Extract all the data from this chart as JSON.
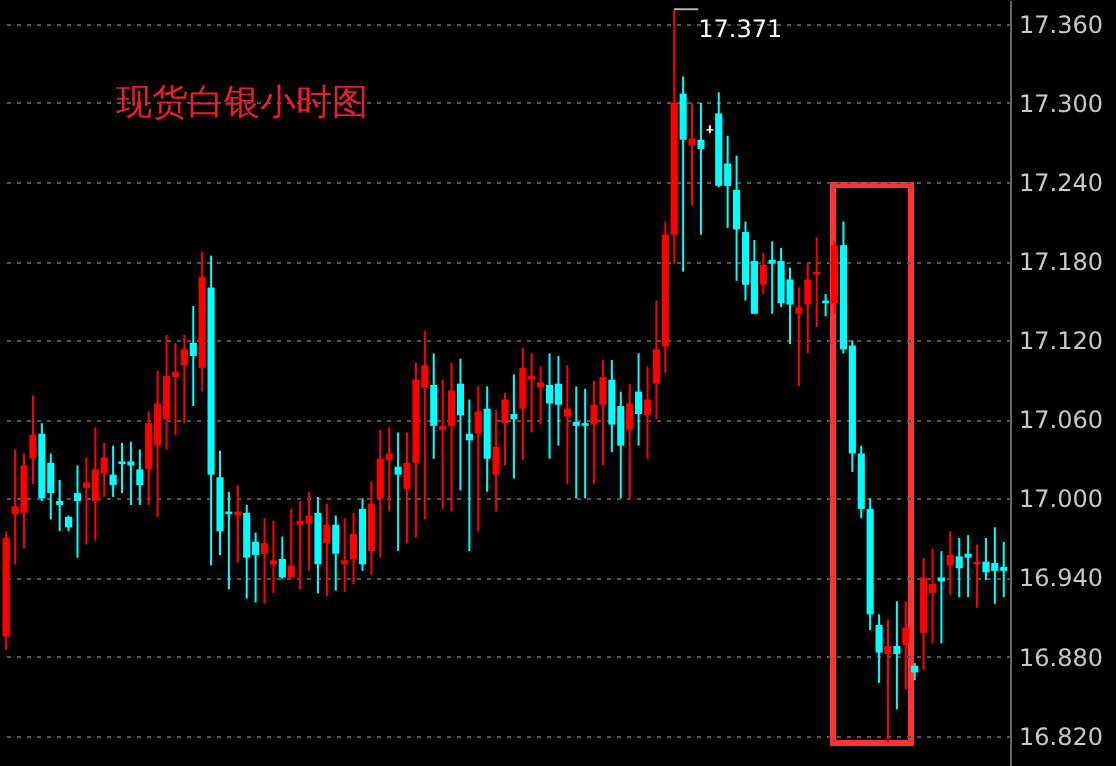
{
  "chart_data": {
    "type": "candlestick",
    "title": "现货白银小时图",
    "categories": [
      null,
      null,
      null,
      null,
      null,
      null,
      null,
      null,
      null,
      null,
      null,
      null,
      null,
      null,
      null,
      null,
      null,
      null,
      null,
      null,
      null,
      null,
      null,
      null,
      null,
      null,
      null,
      null,
      null,
      null,
      null,
      null,
      null,
      null,
      null,
      null,
      null,
      null,
      null,
      null,
      null,
      null,
      null,
      null,
      null,
      null,
      null,
      null,
      null,
      null,
      null,
      null,
      null,
      null,
      null,
      null,
      null,
      null,
      null,
      null,
      null,
      null,
      null,
      null,
      null,
      null,
      null,
      null,
      null,
      null,
      null,
      null,
      null,
      null,
      null,
      null,
      null,
      null,
      null,
      null,
      null,
      null,
      null,
      null,
      null,
      null,
      null,
      null,
      null,
      null,
      null,
      null,
      null,
      null,
      null,
      null,
      null,
      null,
      null,
      null,
      null,
      null,
      null,
      null,
      null,
      null,
      null,
      null,
      null,
      null,
      null,
      null,
      null
    ],
    "ohlc": [
      [
        16.895,
        16.975,
        16.885,
        16.97
      ],
      [
        16.988,
        17.037,
        16.95,
        16.994
      ],
      [
        16.989,
        17.034,
        16.962,
        17.025
      ],
      [
        17.03,
        17.078,
        17.011,
        17.048
      ],
      [
        17.049,
        17.057,
        16.998,
        17.0
      ],
      [
        17.027,
        17.034,
        16.984,
        17.004
      ],
      [
        16.998,
        17.014,
        16.975,
        16.995
      ],
      [
        16.986,
        16.987,
        16.975,
        16.978
      ],
      [
        17.004,
        17.025,
        16.955,
        16.998
      ],
      [
        17.008,
        17.031,
        16.965,
        17.012
      ],
      [
        16.998,
        17.054,
        16.968,
        17.022
      ],
      [
        17.019,
        17.042,
        17.001,
        17.031
      ],
      [
        17.018,
        17.04,
        17.001,
        17.01
      ],
      [
        17.028,
        17.042,
        17.004,
        17.026
      ],
      [
        17.028,
        17.043,
        16.995,
        17.025
      ],
      [
        17.022,
        17.037,
        16.995,
        17.01
      ],
      [
        17.022,
        17.066,
        16.995,
        17.057
      ],
      [
        17.04,
        17.097,
        16.986,
        17.072
      ],
      [
        17.06,
        17.124,
        17.037,
        17.093
      ],
      [
        17.092,
        17.118,
        17.048,
        17.096
      ],
      [
        17.101,
        17.124,
        17.057,
        17.113
      ],
      [
        17.118,
        17.146,
        17.07,
        17.108
      ],
      [
        17.099,
        17.187,
        17.081,
        17.168
      ],
      [
        17.16,
        17.184,
        16.949,
        17.018
      ],
      [
        17.016,
        17.036,
        16.957,
        16.975
      ],
      [
        16.99,
        17.005,
        16.931,
        16.988
      ],
      [
        16.987,
        17.01,
        16.951,
        16.99
      ],
      [
        16.989,
        16.995,
        16.924,
        16.955
      ],
      [
        16.967,
        16.974,
        16.921,
        16.957
      ],
      [
        16.958,
        16.985,
        16.92,
        16.966
      ],
      [
        16.95,
        16.983,
        16.928,
        16.953
      ],
      [
        16.954,
        16.971,
        16.939,
        16.94
      ],
      [
        16.94,
        16.992,
        16.939,
        16.949
      ],
      [
        16.98,
        16.998,
        16.931,
        16.983
      ],
      [
        16.981,
        17.005,
        16.945,
        16.987
      ],
      [
        16.989,
        17.001,
        16.928,
        16.95
      ],
      [
        16.966,
        16.996,
        16.926,
        16.98
      ],
      [
        16.98,
        16.987,
        16.93,
        16.958
      ],
      [
        16.95,
        16.985,
        16.929,
        16.953
      ],
      [
        16.954,
        16.989,
        16.935,
        16.973
      ],
      [
        16.992,
        17.0,
        16.945,
        16.95
      ],
      [
        16.96,
        17.013,
        16.942,
        16.996
      ],
      [
        17.0,
        17.052,
        16.955,
        17.03
      ],
      [
        17.029,
        17.054,
        16.99,
        17.034
      ],
      [
        17.024,
        17.05,
        16.96,
        17.018
      ],
      [
        17.007,
        17.05,
        16.966,
        17.027
      ],
      [
        17.027,
        17.103,
        16.97,
        17.09
      ],
      [
        17.084,
        17.127,
        16.984,
        17.101
      ],
      [
        17.086,
        17.11,
        17.03,
        17.055
      ],
      [
        17.052,
        17.09,
        16.992,
        17.055
      ],
      [
        17.055,
        17.103,
        16.99,
        17.082
      ],
      [
        17.087,
        17.106,
        17.006,
        17.063
      ],
      [
        17.049,
        17.075,
        16.96,
        17.044
      ],
      [
        17.049,
        17.085,
        16.975,
        17.066
      ],
      [
        17.068,
        17.085,
        17.005,
        17.03
      ],
      [
        17.018,
        17.067,
        16.99,
        17.039
      ],
      [
        17.057,
        17.08,
        17.025,
        17.075
      ],
      [
        17.064,
        17.094,
        17.015,
        17.06
      ],
      [
        17.068,
        17.114,
        17.029,
        17.099
      ],
      [
        17.09,
        17.11,
        17.05,
        17.093
      ],
      [
        17.084,
        17.1,
        17.056,
        17.088
      ],
      [
        17.086,
        17.11,
        17.03,
        17.072
      ],
      [
        17.087,
        17.108,
        17.04,
        17.071
      ],
      [
        17.062,
        17.101,
        17.011,
        17.068
      ],
      [
        17.058,
        17.085,
        17.0,
        17.055
      ],
      [
        17.057,
        17.083,
        17.0,
        17.055
      ],
      [
        17.056,
        17.089,
        17.011,
        17.071
      ],
      [
        17.071,
        17.105,
        17.025,
        17.092
      ],
      [
        17.09,
        17.105,
        17.035,
        17.056
      ],
      [
        17.07,
        17.081,
        17.0,
        17.04
      ],
      [
        17.052,
        17.087,
        17.0,
        17.072
      ],
      [
        17.081,
        17.11,
        17.04,
        17.064
      ],
      [
        17.063,
        17.1,
        17.03,
        17.075
      ],
      [
        17.087,
        17.15,
        17.06,
        17.113
      ],
      [
        17.115,
        17.21,
        17.095,
        17.2
      ],
      [
        17.2,
        17.371,
        17.178,
        17.3
      ],
      [
        17.307,
        17.32,
        17.172,
        17.272
      ],
      [
        17.268,
        17.3,
        17.222,
        17.273
      ],
      [
        17.272,
        17.3,
        17.2,
        17.265
      ],
      [
        17.279,
        17.283,
        17.277,
        17.28
      ],
      [
        17.292,
        17.308,
        17.236,
        17.237
      ],
      [
        17.254,
        17.275,
        17.205,
        17.237
      ],
      [
        17.234,
        17.26,
        17.165,
        17.204
      ],
      [
        17.202,
        17.21,
        17.15,
        17.162
      ],
      [
        17.18,
        17.196,
        17.14,
        17.14
      ],
      [
        17.162,
        17.186,
        17.155,
        17.177
      ],
      [
        17.181,
        17.195,
        17.14,
        17.178
      ],
      [
        17.18,
        17.19,
        17.145,
        17.148
      ],
      [
        17.166,
        17.175,
        17.117,
        17.147
      ],
      [
        17.14,
        17.16,
        17.085,
        17.145
      ],
      [
        17.147,
        17.178,
        17.11,
        17.166
      ],
      [
        17.17,
        17.198,
        17.13,
        17.172
      ],
      [
        17.15,
        17.155,
        17.138,
        17.148
      ],
      [
        17.148,
        17.195,
        17.14,
        17.192
      ],
      [
        17.192,
        17.21,
        17.11,
        17.113
      ],
      [
        17.116,
        17.12,
        17.02,
        17.034
      ],
      [
        17.034,
        17.04,
        16.985,
        16.992
      ],
      [
        16.992,
        17.0,
        16.9,
        16.912
      ],
      [
        16.904,
        16.912,
        16.86,
        16.883
      ],
      [
        16.882,
        16.908,
        16.815,
        16.888
      ],
      [
        16.888,
        16.922,
        16.84,
        16.882
      ],
      [
        16.889,
        16.922,
        16.855,
        16.902
      ],
      [
        16.873,
        16.875,
        16.862,
        16.868
      ],
      [
        16.898,
        16.955,
        16.87,
        16.94
      ],
      [
        16.928,
        16.962,
        16.89,
        16.935
      ],
      [
        16.94,
        16.96,
        16.89,
        16.937
      ],
      [
        16.949,
        16.975,
        16.927,
        16.957
      ],
      [
        16.956,
        16.97,
        16.925,
        16.947
      ],
      [
        16.958,
        16.972,
        16.925,
        16.955
      ],
      [
        16.95,
        16.965,
        16.917,
        16.952
      ],
      [
        16.952,
        16.97,
        16.938,
        16.944
      ],
      [
        16.951,
        16.978,
        16.92,
        16.945
      ],
      [
        16.948,
        16.967,
        16.925,
        16.945
      ]
    ],
    "colors": [
      "#ff0000",
      "#ff0000",
      "#ff0000",
      "#ff0000",
      "#00ffff",
      "#00ffff",
      "#00ffff",
      "#00ffff",
      "#00ffff",
      "#ff0000",
      "#ff0000",
      "#ff0000",
      "#00ffff",
      "#00ffff",
      "#00ffff",
      "#00ffff",
      "#ff0000",
      "#ff0000",
      "#ff0000",
      "#ff0000",
      "#ff0000",
      "#00ffff",
      "#ff0000",
      "#00ffff",
      "#00ffff",
      "#00ffff",
      "#ff0000",
      "#00ffff",
      "#00ffff",
      "#ff0000",
      "#ff0000",
      "#00ffff",
      "#ff0000",
      "#ff0000",
      "#ff0000",
      "#00ffff",
      "#ff0000",
      "#00ffff",
      "#ff0000",
      "#ff0000",
      "#00ffff",
      "#ff0000",
      "#ff0000",
      "#ff0000",
      "#00ffff",
      "#ff0000",
      "#ff0000",
      "#ff0000",
      "#00ffff",
      "#ff0000",
      "#ff0000",
      "#00ffff",
      "#00ffff",
      "#ff0000",
      "#00ffff",
      "#ff0000",
      "#ff0000",
      "#00ffff",
      "#ff0000",
      "#ff0000",
      "#ff0000",
      "#00ffff",
      "#00ffff",
      "#ff0000",
      "#00ffff",
      "#00ffff",
      "#ff0000",
      "#ff0000",
      "#00ffff",
      "#00ffff",
      "#ff0000",
      "#00ffff",
      "#ff0000",
      "#ff0000",
      "#ff0000",
      "#ff0000",
      "#00ffff",
      "#ff0000",
      "#00ffff",
      "#ffffff",
      "#00ffff",
      "#00ffff",
      "#00ffff",
      "#00ffff",
      "#00ffff",
      "#ff0000",
      "#00ffff",
      "#00ffff",
      "#00ffff",
      "#ff0000",
      "#ff0000",
      "#ff0000",
      "#00ffff",
      "#ff0000",
      "#00ffff",
      "#00ffff",
      "#00ffff",
      "#00ffff",
      "#00ffff",
      "#ff0000",
      "#00ffff",
      "#ff0000",
      "#00ffff",
      "#ff0000",
      "#ff0000",
      "#00ffff",
      "#ff0000",
      "#00ffff",
      "#00ffff",
      "#ff0000",
      "#00ffff",
      "#00ffff",
      "#00ffff"
    ],
    "ylim": [
      16.797,
      17.378
    ],
    "yticks": [
      {
        "value": 16.82,
        "label": "16.820"
      },
      {
        "value": 16.88,
        "label": "16.880"
      },
      {
        "value": 16.94,
        "label": "16.940"
      },
      {
        "value": 17.0,
        "label": "17.000"
      },
      {
        "value": 17.06,
        "label": "17.060"
      },
      {
        "value": 17.12,
        "label": "17.120"
      },
      {
        "value": 17.18,
        "label": "17.180"
      },
      {
        "value": 17.24,
        "label": "17.240"
      },
      {
        "value": 17.3,
        "label": "17.300"
      },
      {
        "value": 17.36,
        "label": "17.360"
      }
    ],
    "grid": "y",
    "tick_labels": "y",
    "annotations": [
      "17.371"
    ]
  }
}
